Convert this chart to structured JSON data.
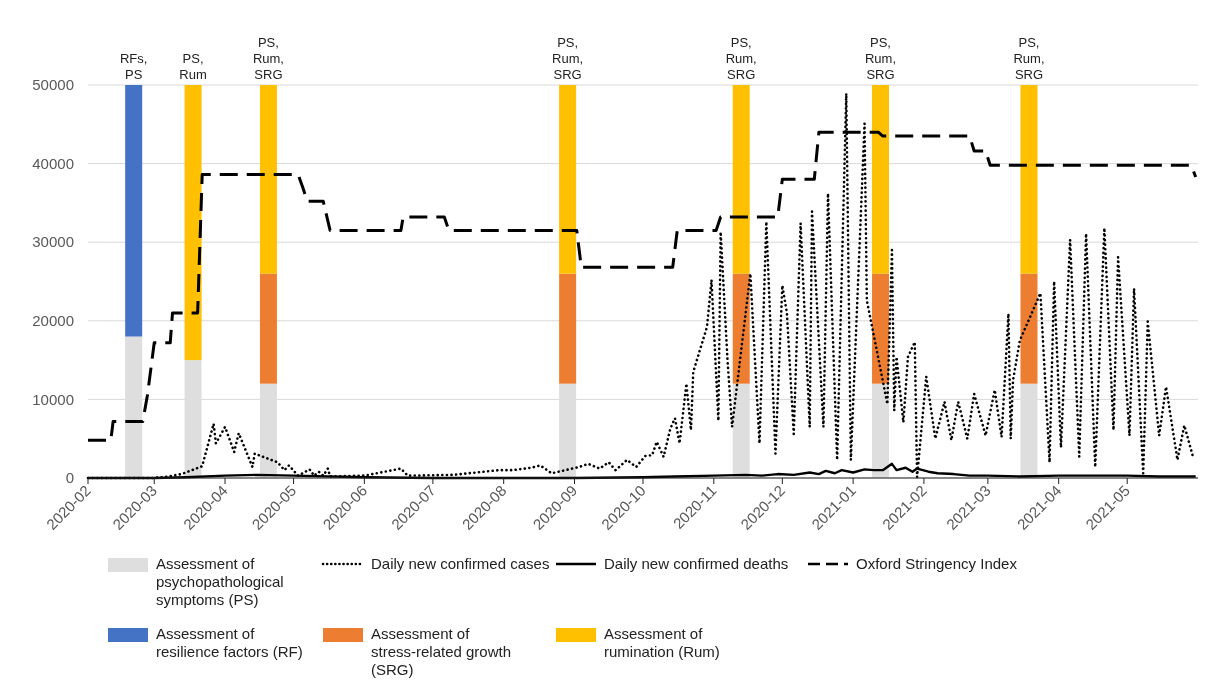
{
  "chart_data": {
    "type": "bar",
    "x": [
      "2020-02-21",
      "2020-03-18",
      "2020-04-20",
      "2020-08-29",
      "2020-11-13",
      "2021-01-13",
      "2021-03-19"
    ],
    "stacked": true,
    "grid": "y",
    "legend": "bottom",
    "xlim": [
      "2020-02-01",
      "2021-06-01"
    ],
    "xticks": [
      "2020-02",
      "2020-03",
      "2020-04",
      "2020-05",
      "2020-06",
      "2020-07",
      "2020-08",
      "2020-09",
      "2020-10",
      "2020-11",
      "2020-12",
      "2021-01",
      "2021-02",
      "2021-03",
      "2021-04",
      "2021-05"
    ],
    "ylim": [
      0,
      50000
    ],
    "yticks": [
      0,
      10000,
      20000,
      30000,
      40000,
      50000
    ],
    "series": [
      {
        "name": "Assessment of psychopathological symptoms (PS)",
        "color": "#dedede",
        "values": [
          18000,
          15000,
          12000,
          12000,
          12000,
          12000,
          12000
        ]
      },
      {
        "name": "Daily new confirmed cases",
        "type": "line",
        "line_style": "dotted",
        "color": "#000000",
        "x": [
          "2020-02-01",
          "2020-02-29",
          "2020-03-05",
          "2020-03-13",
          "2020-03-22",
          "2020-03-27",
          "2020-03-28",
          "2020-04-01",
          "2020-04-05",
          "2020-04-07",
          "2020-04-13",
          "2020-04-14",
          "2020-04-24",
          "2020-04-27",
          "2020-04-29",
          "2020-05-03",
          "2020-05-08",
          "2020-05-10",
          "2020-05-12",
          "2020-05-14",
          "2020-05-16",
          "2020-05-17",
          "2020-06-01",
          "2020-06-17",
          "2020-06-20",
          "2020-07-10",
          "2020-07-30",
          "2020-08-05",
          "2020-08-13",
          "2020-08-17",
          "2020-08-22",
          "2020-09-03",
          "2020-09-07",
          "2020-09-12",
          "2020-09-16",
          "2020-09-19",
          "2020-09-24",
          "2020-09-28",
          "2020-10-02",
          "2020-10-05",
          "2020-10-07",
          "2020-10-10",
          "2020-10-13",
          "2020-10-15",
          "2020-10-17",
          "2020-10-20",
          "2020-10-22",
          "2020-10-23",
          "2020-10-29",
          "2020-10-31",
          "2020-11-03",
          "2020-11-04",
          "2020-11-07",
          "2020-11-09",
          "2020-11-17",
          "2020-11-21",
          "2020-11-24",
          "2020-11-28",
          "2020-12-01",
          "2020-12-03",
          "2020-12-06",
          "2020-12-09",
          "2020-12-13",
          "2020-12-14",
          "2020-12-19",
          "2020-12-21",
          "2020-12-25",
          "2020-12-29",
          "2020-12-31",
          "2021-01-06",
          "2021-01-07",
          "2021-01-16",
          "2021-01-18",
          "2021-01-19",
          "2021-01-20",
          "2021-01-23",
          "2021-01-25",
          "2021-01-28",
          "2021-01-29",
          "2021-02-02",
          "2021-02-06",
          "2021-02-10",
          "2021-02-13",
          "2021-02-16",
          "2021-02-20",
          "2021-02-23",
          "2021-02-28",
          "2021-03-04",
          "2021-03-07",
          "2021-03-10",
          "2021-03-11",
          "2021-03-12",
          "2021-03-15",
          "2021-03-24",
          "2021-03-28",
          "2021-03-30",
          "2021-04-02",
          "2021-04-06",
          "2021-04-10",
          "2021-04-13",
          "2021-04-17",
          "2021-04-21",
          "2021-04-25",
          "2021-04-27",
          "2021-05-02",
          "2021-05-04",
          "2021-05-08",
          "2021-05-10",
          "2021-05-15",
          "2021-05-18",
          "2021-05-23",
          "2021-05-26",
          "2021-05-30"
        ],
        "values": [
          0,
          0,
          100,
          500,
          1500,
          6900,
          4400,
          6500,
          3300,
          5700,
          1400,
          3100,
          2000,
          1000,
          1600,
          300,
          1100,
          300,
          800,
          300,
          1200,
          200,
          300,
          1200,
          300,
          400,
          1000,
          1000,
          1300,
          1600,
          600,
          1400,
          1800,
          1200,
          2000,
          1000,
          2300,
          1400,
          2800,
          2900,
          4600,
          2700,
          6300,
          7600,
          4400,
          12000,
          6100,
          13500,
          19200,
          25200,
          7300,
          31300,
          15000,
          6500,
          26000,
          4400,
          32600,
          3100,
          24500,
          21000,
          5600,
          32400,
          6500,
          33900,
          6500,
          36200,
          2300,
          48900,
          2300,
          45100,
          22600,
          9400,
          29000,
          8600,
          15400,
          7100,
          15400,
          17300,
          100,
          12900,
          5000,
          9700,
          4800,
          9700,
          5000,
          10700,
          5400,
          11200,
          5200,
          20900,
          5000,
          12400,
          17500,
          23500,
          2000,
          25000,
          3900,
          30300,
          2700,
          31100,
          1400,
          31800,
          6100,
          28100,
          5400,
          24100,
          600,
          19900,
          5400,
          11600,
          2300,
          6700,
          2500
        ]
      },
      {
        "name": "Daily new confirmed deaths",
        "type": "line",
        "line_style": "solid",
        "color": "#000000",
        "x": [
          "2020-02-01",
          "2020-03-01",
          "2020-03-15",
          "2020-04-01",
          "2020-04-15",
          "2020-05-01",
          "2020-06-01",
          "2020-07-01",
          "2020-08-01",
          "2020-09-01",
          "2020-10-01",
          "2020-10-15",
          "2020-11-01",
          "2020-11-15",
          "2020-11-22",
          "2020-11-29",
          "2020-12-06",
          "2020-12-13",
          "2020-12-17",
          "2020-12-20",
          "2020-12-24",
          "2020-12-27",
          "2021-01-01",
          "2021-01-06",
          "2021-01-10",
          "2021-01-14",
          "2021-01-18",
          "2021-01-20",
          "2021-01-24",
          "2021-01-27",
          "2021-01-29",
          "2021-02-03",
          "2021-02-07",
          "2021-02-14",
          "2021-02-21",
          "2021-03-01",
          "2021-03-15",
          "2021-04-01",
          "2021-04-15",
          "2021-05-01",
          "2021-05-15",
          "2021-05-31"
        ],
        "values": [
          0,
          0,
          100,
          300,
          400,
          300,
          100,
          0,
          0,
          0,
          100,
          200,
          300,
          400,
          300,
          500,
          400,
          700,
          500,
          900,
          600,
          1000,
          700,
          1100,
          1000,
          1000,
          1800,
          1000,
          1300,
          800,
          1200,
          800,
          600,
          500,
          300,
          300,
          200,
          300,
          300,
          300,
          200,
          200
        ]
      },
      {
        "name": "Oxford Stringency Index",
        "type": "line",
        "line_style": "dashed",
        "color": "#000000",
        "x": [
          "2020-02-01",
          "2020-02-11",
          "2020-02-12",
          "2020-02-25",
          "2020-02-27",
          "2020-03-01",
          "2020-03-08",
          "2020-03-09",
          "2020-03-20",
          "2020-03-22",
          "2020-05-03",
          "2020-05-05",
          "2020-05-07",
          "2020-05-14",
          "2020-05-17",
          "2020-06-17",
          "2020-06-18",
          "2020-07-06",
          "2020-07-08",
          "2020-09-02",
          "2020-09-04",
          "2020-10-14",
          "2020-10-16",
          "2020-11-02",
          "2020-11-04",
          "2020-11-29",
          "2020-12-01",
          "2020-12-15",
          "2020-12-17",
          "2021-01-12",
          "2021-01-14",
          "2021-02-21",
          "2021-02-23",
          "2021-02-28",
          "2021-03-02",
          "2021-05-29",
          "2021-05-31"
        ],
        "values": [
          4800,
          4800,
          7200,
          7200,
          10500,
          17200,
          17200,
          21000,
          21000,
          38600,
          38600,
          37000,
          35200,
          35200,
          31500,
          31500,
          33200,
          33200,
          31500,
          31500,
          26800,
          26800,
          31500,
          31500,
          33200,
          33200,
          38000,
          38000,
          44000,
          44000,
          43500,
          43500,
          41600,
          41600,
          39800,
          39800,
          38300
        ]
      },
      {
        "name": "Assessment of resilience factors (RF)",
        "color": "#4472c4",
        "values": [
          32000,
          0,
          0,
          0,
          0,
          0,
          0
        ]
      },
      {
        "name": "Assessment of stress-related growth (SRG)",
        "color": "#ed7d31",
        "values": [
          0,
          0,
          14000,
          14000,
          14000,
          14000,
          14000
        ]
      },
      {
        "name": "Assessment of rumination (Rum)",
        "color": "#ffc000",
        "values": [
          0,
          35000,
          24000,
          24000,
          24000,
          24000,
          24000
        ]
      }
    ],
    "annotations": [
      {
        "text": "RFs, PS",
        "x": "2020-02-21",
        "y": 50000
      },
      {
        "text": "PS, Rum",
        "x": "2020-03-18",
        "y": 50000
      },
      {
        "text": "PS, Rum, SRG",
        "x": "2020-04-20",
        "y": 50000
      },
      {
        "text": "PS, Rum, SRG",
        "x": "2020-08-29",
        "y": 50000
      },
      {
        "text": "PS, Rum, SRG",
        "x": "2020-11-13",
        "y": 50000
      },
      {
        "text": "PS, Rum, SRG",
        "x": "2021-01-13",
        "y": 50000
      },
      {
        "text": "PS, Rum, SRG",
        "x": "2021-03-19",
        "y": 50000
      }
    ]
  }
}
